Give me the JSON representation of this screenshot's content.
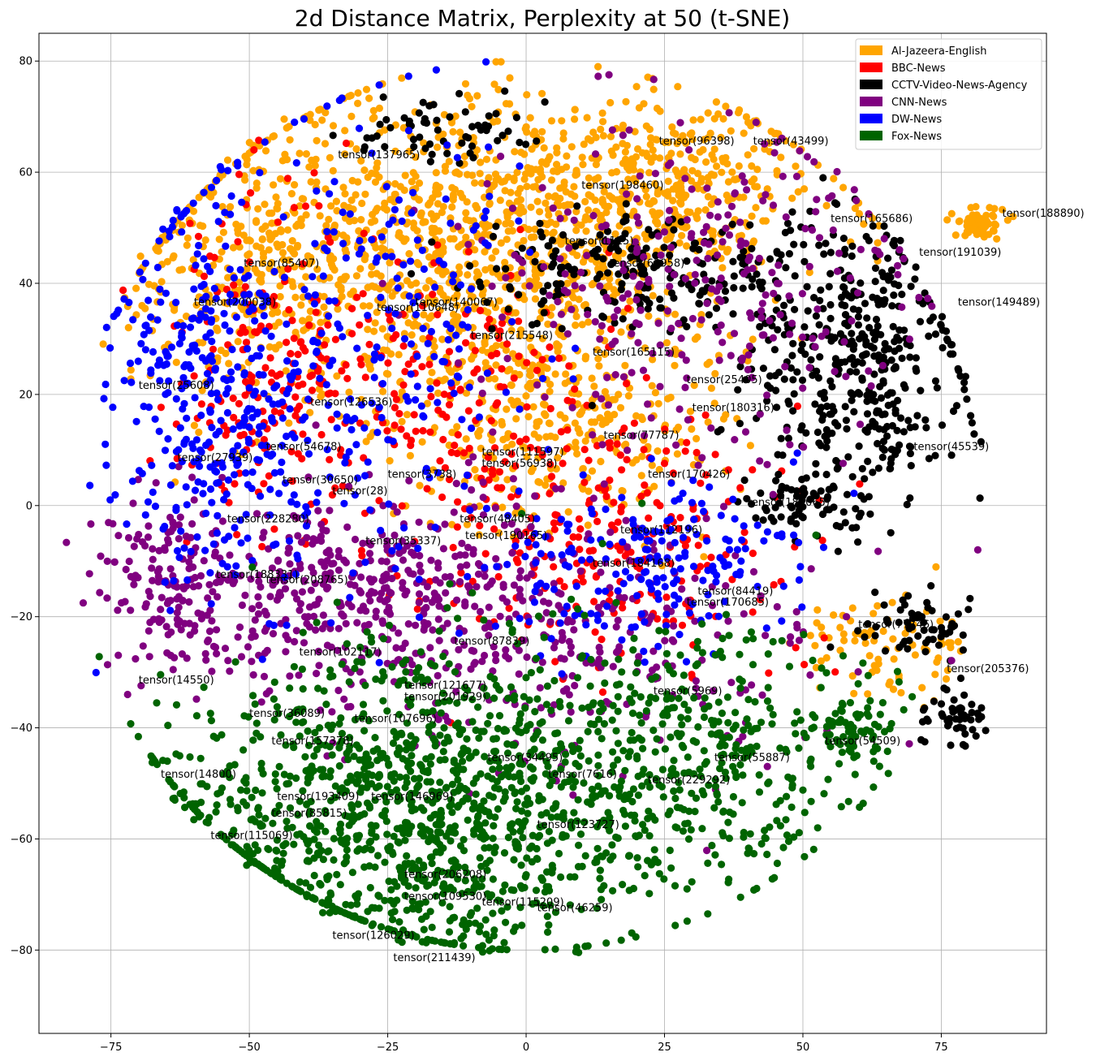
{
  "chart_data": {
    "type": "scatter",
    "title": "2d Distance Matrix, Perplexity at 50 (t-SNE)",
    "xlabel": "",
    "ylabel": "",
    "xlim": [
      -88,
      94
    ],
    "ylim": [
      -95,
      85
    ],
    "xticks": [
      -75,
      -50,
      -25,
      0,
      25,
      50,
      75
    ],
    "yticks": [
      -80,
      -60,
      -40,
      -20,
      0,
      20,
      40,
      60,
      80
    ],
    "grid": true,
    "legend_position": "top-right",
    "series": [
      {
        "name": "Al-Jazeera-English",
        "color": "#FFA500"
      },
      {
        "name": "BBC-News",
        "color": "#FF0000"
      },
      {
        "name": "CCTV-Video-News-Agency",
        "color": "#000000"
      },
      {
        "name": "CNN-News",
        "color": "#800080"
      },
      {
        "name": "DW-News",
        "color": "#0000FF"
      },
      {
        "name": "Fox-News",
        "color": "#006400"
      }
    ],
    "clusters": [
      {
        "series": 0,
        "x": -10,
        "y": 45,
        "sx": 22,
        "sy": 15,
        "n": 1000
      },
      {
        "series": 0,
        "x": 25,
        "y": 58,
        "sx": 14,
        "sy": 8,
        "n": 350
      },
      {
        "series": 0,
        "x": -50,
        "y": 45,
        "sx": 12,
        "sy": 12,
        "n": 300
      },
      {
        "series": 0,
        "x": 5,
        "y": 15,
        "sx": 15,
        "sy": 10,
        "n": 300
      },
      {
        "series": 0,
        "x": 82,
        "y": 51,
        "sx": 2.5,
        "sy": 1.5,
        "n": 60
      },
      {
        "series": 0,
        "x": 65,
        "y": -25,
        "sx": 8,
        "sy": 5,
        "n": 80
      },
      {
        "series": 1,
        "x": -45,
        "y": 25,
        "sx": 10,
        "sy": 15,
        "n": 200
      },
      {
        "series": 1,
        "x": 15,
        "y": -5,
        "sx": 15,
        "sy": 12,
        "n": 250
      },
      {
        "series": 1,
        "x": -15,
        "y": 20,
        "sx": 12,
        "sy": 12,
        "n": 150
      },
      {
        "series": 2,
        "x": 60,
        "y": 25,
        "sx": 10,
        "sy": 13,
        "n": 450
      },
      {
        "series": 2,
        "x": 20,
        "y": 42,
        "sx": 14,
        "sy": 5,
        "n": 220
      },
      {
        "series": 2,
        "x": -15,
        "y": 68,
        "sx": 8,
        "sy": 3,
        "n": 60
      },
      {
        "series": 2,
        "x": 70,
        "y": -22,
        "sx": 5,
        "sy": 3,
        "n": 60
      },
      {
        "series": 2,
        "x": 78,
        "y": -38,
        "sx": 3,
        "sy": 3,
        "n": 50
      },
      {
        "series": 2,
        "x": 50,
        "y": 0,
        "sx": 6,
        "sy": 3,
        "n": 60
      },
      {
        "series": 3,
        "x": -30,
        "y": -15,
        "sx": 20,
        "sy": 8,
        "n": 400
      },
      {
        "series": 3,
        "x": 30,
        "y": 40,
        "sx": 20,
        "sy": 15,
        "n": 300
      },
      {
        "series": 3,
        "x": 5,
        "y": -25,
        "sx": 25,
        "sy": 12,
        "n": 300
      },
      {
        "series": 3,
        "x": -65,
        "y": -15,
        "sx": 6,
        "sy": 8,
        "n": 120
      },
      {
        "series": 4,
        "x": -55,
        "y": 20,
        "sx": 10,
        "sy": 18,
        "n": 400
      },
      {
        "series": 4,
        "x": -25,
        "y": 30,
        "sx": 12,
        "sy": 20,
        "n": 200
      },
      {
        "series": 4,
        "x": 20,
        "y": -10,
        "sx": 15,
        "sy": 8,
        "n": 200
      },
      {
        "series": 5,
        "x": -20,
        "y": -55,
        "sx": 22,
        "sy": 14,
        "n": 1300
      },
      {
        "series": 5,
        "x": 30,
        "y": -45,
        "sx": 16,
        "sy": 12,
        "n": 400
      },
      {
        "series": 5,
        "x": 58,
        "y": -40,
        "sx": 4,
        "sy": 3,
        "n": 60
      }
    ],
    "annotations": [
      {
        "label": "tensor(137965)",
        "x": -34,
        "y": 62.5
      },
      {
        "label": "tensor(96398)",
        "x": 24,
        "y": 65
      },
      {
        "label": "tensor(43499)",
        "x": 41,
        "y": 65
      },
      {
        "label": "tensor(198460)",
        "x": 10,
        "y": 57
      },
      {
        "label": "tensor(188890)",
        "x": 86,
        "y": 52
      },
      {
        "label": "tensor(165686)",
        "x": 55,
        "y": 51
      },
      {
        "label": "tensor(191039)",
        "x": 71,
        "y": 45
      },
      {
        "label": "tensor(1115)",
        "x": 7,
        "y": 47
      },
      {
        "label": "tensor(85407)",
        "x": -51,
        "y": 43
      },
      {
        "label": "tensor(200038)",
        "x": -60,
        "y": 36
      },
      {
        "label": "tensor(110648)",
        "x": -27,
        "y": 35
      },
      {
        "label": "tensor(140067)",
        "x": -20,
        "y": 36
      },
      {
        "label": "tensor(149489)",
        "x": 78,
        "y": 36
      },
      {
        "label": "tensor(215548)",
        "x": -10,
        "y": 30
      },
      {
        "label": "tensor(63958)",
        "x": 15,
        "y": 43
      },
      {
        "label": "tensor(165115)",
        "x": 12,
        "y": 27
      },
      {
        "label": "tensor(25405)",
        "x": 29,
        "y": 22
      },
      {
        "label": "tensor(25608)",
        "x": -70,
        "y": 21
      },
      {
        "label": "tensor(126536)",
        "x": -39,
        "y": 18
      },
      {
        "label": "tensor(180316)",
        "x": 30,
        "y": 17
      },
      {
        "label": "tensor(77787)",
        "x": 14,
        "y": 12
      },
      {
        "label": "tensor(45539)",
        "x": 70,
        "y": 10
      },
      {
        "label": "tensor(54678)",
        "x": -47,
        "y": 10
      },
      {
        "label": "tensor(111597)",
        "x": -8,
        "y": 9
      },
      {
        "label": "tensor(56938)",
        "x": -8,
        "y": 7
      },
      {
        "label": "tensor(27939)",
        "x": -63,
        "y": 8
      },
      {
        "label": "tensor(3738)",
        "x": -25,
        "y": 5
      },
      {
        "label": "tensor(30650)",
        "x": -44,
        "y": 4
      },
      {
        "label": "tensor(170426)",
        "x": 22,
        "y": 5
      },
      {
        "label": "tensor(28)",
        "x": -35,
        "y": 2
      },
      {
        "label": "tensor(185065)",
        "x": 40,
        "y": 0
      },
      {
        "label": "tensor(228280)",
        "x": -54,
        "y": -3
      },
      {
        "label": "tensor(48405)",
        "x": -12,
        "y": -3
      },
      {
        "label": "tensor(35337)",
        "x": -29,
        "y": -7
      },
      {
        "label": "tensor(190165)",
        "x": -11,
        "y": -6
      },
      {
        "label": "tensor(112196)",
        "x": 17,
        "y": -5
      },
      {
        "label": "tensor(184168)",
        "x": 12,
        "y": -11
      },
      {
        "label": "tensor(188331)",
        "x": -56,
        "y": -13
      },
      {
        "label": "tensor(208765)",
        "x": -47,
        "y": -14
      },
      {
        "label": "tensor(84419)",
        "x": 31,
        "y": -16
      },
      {
        "label": "tensor(170685)",
        "x": 29,
        "y": -18
      },
      {
        "label": "tensor(77746)",
        "x": 60,
        "y": -22
      },
      {
        "label": "tensor(87839)",
        "x": -13,
        "y": -25
      },
      {
        "label": "tensor(102117)",
        "x": -41,
        "y": -27
      },
      {
        "label": "tensor(205376)",
        "x": 76,
        "y": -30
      },
      {
        "label": "tensor(14550)",
        "x": -70,
        "y": -32
      },
      {
        "label": "tensor(121677)",
        "x": -22,
        "y": -33
      },
      {
        "label": "tensor(201929)",
        "x": -22,
        "y": -35
      },
      {
        "label": "tensor(5969)",
        "x": 23,
        "y": -34
      },
      {
        "label": "tensor(36089)",
        "x": -50,
        "y": -38
      },
      {
        "label": "tensor(107696)",
        "x": -31,
        "y": -39
      },
      {
        "label": "tensor(157378)",
        "x": -46,
        "y": -43
      },
      {
        "label": "tensor(54509)",
        "x": 54,
        "y": -43
      },
      {
        "label": "tensor(34495)",
        "x": -7,
        "y": -46
      },
      {
        "label": "tensor(55887)",
        "x": 34,
        "y": -46
      },
      {
        "label": "tensor(14800)",
        "x": -66,
        "y": -49
      },
      {
        "label": "tensor(7616)",
        "x": 4,
        "y": -49
      },
      {
        "label": "tensor(229292)",
        "x": 22,
        "y": -50
      },
      {
        "label": "tensor(146969)",
        "x": -28,
        "y": -53
      },
      {
        "label": "tensor(193409)",
        "x": -45,
        "y": -53
      },
      {
        "label": "tensor(85815)",
        "x": -46,
        "y": -56
      },
      {
        "label": "tensor(123727)",
        "x": 2,
        "y": -58
      },
      {
        "label": "tensor(115069)",
        "x": -57,
        "y": -60
      },
      {
        "label": "tensor(206208)",
        "x": -22,
        "y": -67
      },
      {
        "label": "tensor(109530)",
        "x": -22,
        "y": -71
      },
      {
        "label": "tensor(115209)",
        "x": -8,
        "y": -72
      },
      {
        "label": "tensor(46259)",
        "x": 2,
        "y": -73
      },
      {
        "label": "tensor(126029)",
        "x": -35,
        "y": -78
      },
      {
        "label": "tensor(211439)",
        "x": -24,
        "y": -82
      }
    ]
  }
}
